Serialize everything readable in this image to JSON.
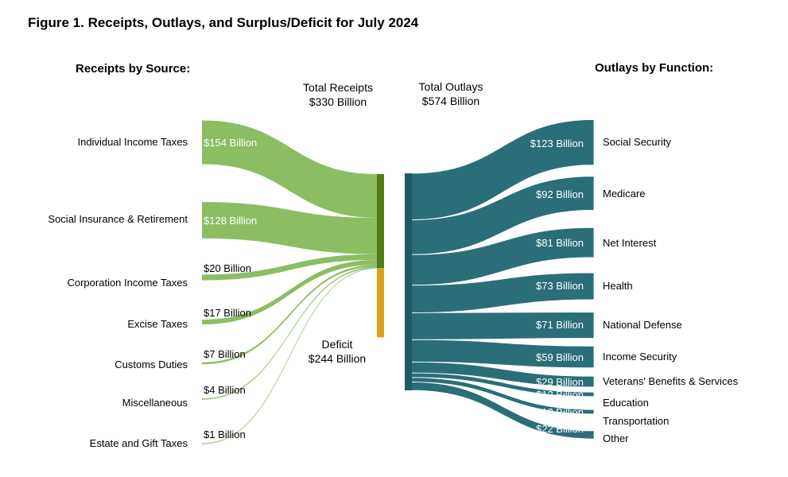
{
  "figure_title": "Figure 1. Receipts, Outlays, and Surplus/Deficit for July 2024",
  "receipts_heading": "Receipts by Source:",
  "outlays_heading": "Outlays by Function:",
  "total_receipts": {
    "line1": "Total Receipts",
    "line2": "$330 Billion"
  },
  "total_outlays": {
    "line1": "Total Outlays",
    "line2": "$574 Billion"
  },
  "deficit": {
    "line1": "Deficit",
    "line2": "$244 Billion"
  },
  "colors": {
    "receipts": "#8cbd63",
    "receipts_node": "#4f7d13",
    "deficit_node": "#dca21f",
    "outlays": "#2a6e78",
    "outlays_node": "#1f5a63"
  },
  "chart_data": {
    "type": "sankey",
    "unit": "Billion",
    "receipts": [
      {
        "name": "Individual Income Taxes",
        "value": 154,
        "label": "$154 Billion"
      },
      {
        "name": "Social Insurance & Retirement",
        "value": 128,
        "label": "$128 Billion"
      },
      {
        "name": "Corporation Income Taxes",
        "value": 20,
        "label": "$20 Billion"
      },
      {
        "name": "Excise Taxes",
        "value": 17,
        "label": "$17 Billion"
      },
      {
        "name": "Customs Duties",
        "value": 7,
        "label": "$7 Billion"
      },
      {
        "name": "Miscellaneous",
        "value": 4,
        "label": "$4 Billion"
      },
      {
        "name": "Estate and Gift Taxes",
        "value": 1,
        "label": "$1 Billion"
      }
    ],
    "outlays": [
      {
        "name": "Social Security",
        "value": 123,
        "label": "$123 Billion"
      },
      {
        "name": "Medicare",
        "value": 92,
        "label": "$92 Billion"
      },
      {
        "name": "Net Interest",
        "value": 81,
        "label": "$81 Billion"
      },
      {
        "name": "Health",
        "value": 73,
        "label": "$73 Billion"
      },
      {
        "name": "National Defense",
        "value": 71,
        "label": "$71 Billion"
      },
      {
        "name": "Income Security",
        "value": 59,
        "label": "$59 Billion"
      },
      {
        "name": "Veterans' Benefits & Services",
        "value": 29,
        "label": "$29 Billion"
      },
      {
        "name": "Education",
        "value": 12,
        "label": "$12 Billion"
      },
      {
        "name": "Transportation",
        "value": 12,
        "label": "$12 Billion"
      },
      {
        "name": "Other",
        "value": 22,
        "label": "$22 Billion"
      }
    ],
    "total_receipts": 330,
    "total_outlays": 574,
    "deficit": 244
  }
}
